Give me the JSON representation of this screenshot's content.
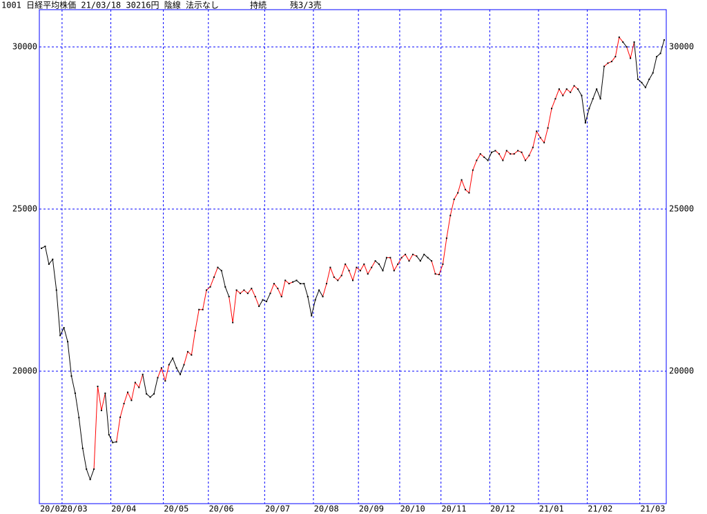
{
  "header": {
    "title": "1001 日経平均株価 21/03/18 30216円 陰線 法示なし",
    "status": "持続",
    "position": "残3/3売"
  },
  "chart_data": {
    "type": "line",
    "categories": [
      "20/02",
      null,
      null,
      null,
      null,
      null,
      "20/03",
      null,
      null,
      null,
      null,
      null,
      null,
      null,
      null,
      null,
      null,
      null,
      null,
      "20/04",
      null,
      null,
      null,
      null,
      null,
      null,
      null,
      null,
      null,
      null,
      null,
      null,
      null,
      "20/05",
      null,
      null,
      null,
      null,
      null,
      null,
      null,
      null,
      null,
      null,
      null,
      "20/06",
      null,
      null,
      null,
      null,
      null,
      null,
      null,
      null,
      null,
      null,
      null,
      null,
      null,
      null,
      "20/07",
      null,
      null,
      null,
      null,
      null,
      null,
      null,
      null,
      null,
      null,
      null,
      null,
      "20/08",
      null,
      null,
      null,
      null,
      null,
      null,
      null,
      null,
      null,
      null,
      null,
      "20/09",
      null,
      null,
      null,
      null,
      null,
      null,
      null,
      null,
      null,
      null,
      "20/10",
      null,
      null,
      null,
      null,
      null,
      null,
      null,
      null,
      null,
      null,
      "20/11",
      null,
      null,
      null,
      null,
      null,
      null,
      null,
      null,
      null,
      null,
      null,
      null,
      "20/12",
      null,
      null,
      null,
      null,
      null,
      null,
      null,
      null,
      null,
      null,
      null,
      null,
      "21/01",
      null,
      null,
      null,
      null,
      null,
      null,
      null,
      null,
      null,
      null,
      null,
      null,
      "21/02",
      null,
      null,
      null,
      null,
      null,
      null,
      null,
      null,
      null,
      null,
      null,
      null,
      null,
      "21/03",
      null,
      null,
      null,
      null,
      null,
      null
    ],
    "series": [
      {
        "values": [
          23790,
          23850,
          23300,
          23450,
          22500,
          21100,
          21340,
          20910,
          19850,
          19320,
          18570,
          17620,
          16980,
          16660,
          16980,
          19530,
          18790,
          19320,
          18040,
          17800,
          17820,
          18580,
          19000,
          19350,
          19100,
          19650,
          19500,
          19900,
          19300,
          19200,
          19300,
          19800,
          20100,
          19700,
          20200,
          20400,
          20100,
          19900,
          20200,
          20600,
          20500,
          21250,
          21900,
          21900,
          22500,
          22600,
          22900,
          23200,
          23100,
          22600,
          22300,
          21500,
          22500,
          22400,
          22500,
          22400,
          22550,
          22300,
          22000,
          22200,
          22150,
          22400,
          22700,
          22550,
          22300,
          22800,
          22700,
          22750,
          22800,
          22700,
          22700,
          22300,
          21710,
          22200,
          22500,
          22300,
          22700,
          23200,
          22900,
          22800,
          22950,
          23300,
          23100,
          22800,
          23200,
          23100,
          23300,
          23000,
          23200,
          23400,
          23300,
          23100,
          23500,
          23500,
          23100,
          23300,
          23500,
          23600,
          23400,
          23600,
          23550,
          23400,
          23600,
          23500,
          23400,
          23000,
          22980,
          23300,
          24100,
          24800,
          25300,
          25500,
          25900,
          25600,
          25500,
          26200,
          26500,
          26700,
          26600,
          26500,
          26750,
          26800,
          26700,
          26500,
          26800,
          26700,
          26700,
          26800,
          26750,
          26500,
          26650,
          26900,
          27400,
          27200,
          27050,
          27500,
          28100,
          28400,
          28700,
          28500,
          28700,
          28600,
          28800,
          28700,
          28500,
          27660,
          28100,
          28400,
          28700,
          28400,
          29400,
          29500,
          29550,
          29700,
          30300,
          30150,
          30000,
          29650,
          30150,
          29000,
          28900,
          28750,
          29000,
          29200,
          29700,
          29800,
          30216
        ],
        "point_color": "#000000",
        "segment_colors": [
          "#000",
          "#000",
          "#000",
          "#000",
          "#000",
          "#000",
          "#000",
          "#000",
          "#000",
          "#000",
          "#000",
          "#000",
          "#000",
          "#000",
          "#000",
          "#f00",
          "#f00",
          "#f00",
          "#000",
          "#000",
          "#000",
          "#f00",
          "#f00",
          "#f00",
          "#f00",
          "#f00",
          "#f00",
          "#f00",
          "#000",
          "#000",
          "#000",
          "#000",
          "#f00",
          "#f00",
          "#f00",
          "#000",
          "#000",
          "#000",
          "#000",
          "#f00",
          "#f00",
          "#f00",
          "#f00",
          "#f00",
          "#f00",
          "#f00",
          "#f00",
          "#f00",
          "#000",
          "#000",
          "#000",
          "#f00",
          "#f00",
          "#f00",
          "#f00",
          "#f00",
          "#f00",
          "#f00",
          "#f00",
          "#000",
          "#000",
          "#000",
          "#f00",
          "#f00",
          "#f00",
          "#f00",
          "#f00",
          "#f00",
          "#000",
          "#000",
          "#000",
          "#000",
          "#000",
          "#000",
          "#000",
          "#000",
          "#f00",
          "#f00",
          "#f00",
          "#f00",
          "#f00",
          "#f00",
          "#f00",
          "#f00",
          "#f00",
          "#f00",
          "#f00",
          "#f00",
          "#f00",
          "#f00",
          "#000",
          "#000",
          "#000",
          "#f00",
          "#f00",
          "#f00",
          "#f00",
          "#f00",
          "#f00",
          "#f00",
          "#f00",
          "#000",
          "#000",
          "#000",
          "#000",
          "#f00",
          "#f00",
          "#f00",
          "#f00",
          "#f00",
          "#f00",
          "#f00",
          "#f00",
          "#f00",
          "#f00",
          "#f00",
          "#f00",
          "#f00",
          "#f00",
          "#000",
          "#000",
          "#000",
          "#f00",
          "#f00",
          "#f00",
          "#f00",
          "#f00",
          "#f00",
          "#f00",
          "#f00",
          "#f00",
          "#f00",
          "#f00",
          "#f00",
          "#f00",
          "#f00",
          "#f00",
          "#f00",
          "#f00",
          "#f00",
          "#f00",
          "#f00",
          "#f00",
          "#f00",
          "#000",
          "#000",
          "#000",
          "#000",
          "#000",
          "#000",
          "#000",
          "#f00",
          "#f00",
          "#f00",
          "#f00",
          "#f00",
          "#000",
          "#f00",
          "#f00",
          "#000",
          "#000",
          "#000",
          "#000",
          "#000",
          "#000",
          "#000",
          "#000"
        ]
      }
    ],
    "ylim": [
      15915,
      31149
    ],
    "yticks": [
      20000,
      25000,
      30000
    ],
    "grid": true,
    "grid_color": "#0000ff",
    "frame_color": "#0000ff"
  }
}
